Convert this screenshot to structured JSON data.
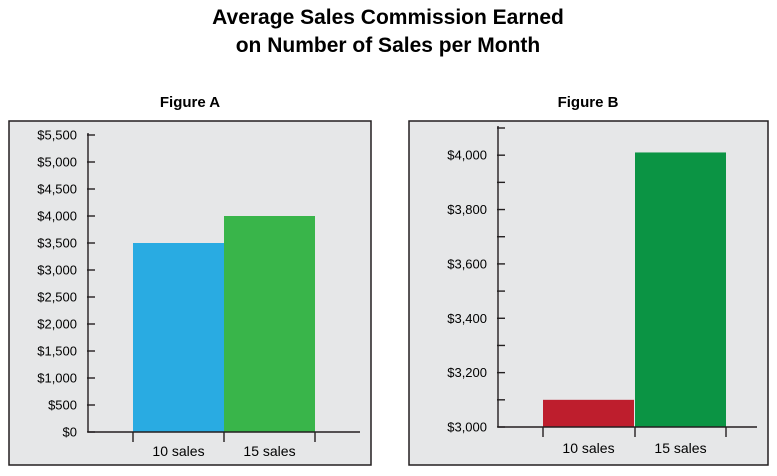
{
  "title": {
    "line1": "Average Sales Commission Earned",
    "line2": "on Number of Sales per Month"
  },
  "chart_data": [
    {
      "type": "bar",
      "title": "Figure A",
      "categories": [
        "10 sales",
        "15 sales"
      ],
      "values": [
        3500,
        4000
      ],
      "colors": [
        "#29abe2",
        "#39b54a"
      ],
      "ylim": [
        0,
        5500
      ],
      "yticks": [
        0,
        500,
        1000,
        1500,
        2000,
        2500,
        3000,
        3500,
        4000,
        4500,
        5000,
        5500
      ],
      "ytick_labels": [
        "$0",
        "$500",
        "$1,000",
        "$1,500",
        "$2,000",
        "$2,500",
        "$3,000",
        "$3,500",
        "$4,000",
        "$4,500",
        "$5,000",
        "$5,500"
      ],
      "minor_ticks": [],
      "background": "#e6e7e8",
      "grid": false
    },
    {
      "type": "bar",
      "title": "Figure B",
      "categories": [
        "10 sales",
        "15 sales"
      ],
      "values": [
        3100,
        4010
      ],
      "colors": [
        "#be1e2d",
        "#0b9444"
      ],
      "ylim": [
        3000,
        4100
      ],
      "yticks": [
        3000,
        3200,
        3400,
        3600,
        3800,
        4000
      ],
      "ytick_labels": [
        "$3,000",
        "$3,200",
        "$3,400",
        "$3,600",
        "$3,800",
        "$4,000"
      ],
      "minor_ticks": [
        3100,
        3300,
        3500,
        3700,
        3900,
        4100
      ],
      "background": "#e6e7e8",
      "grid": false
    }
  ]
}
